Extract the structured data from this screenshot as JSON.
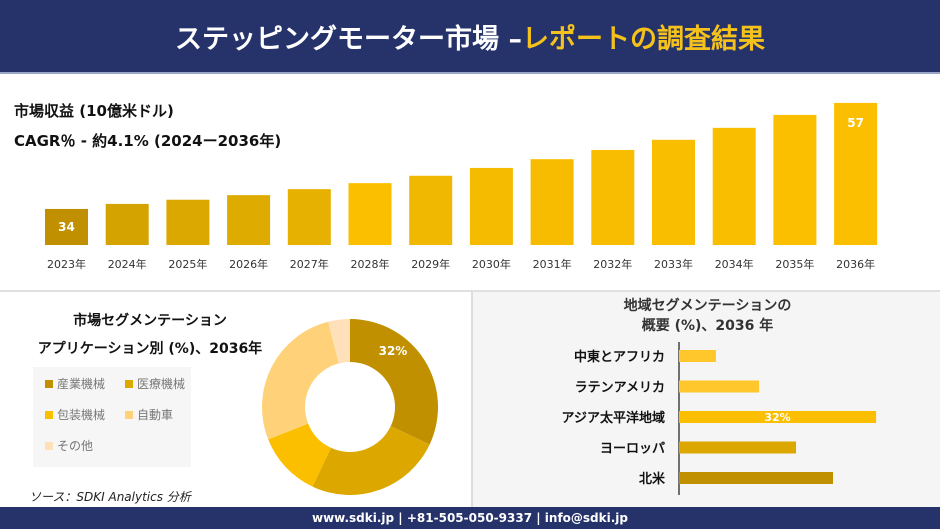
{
  "header": {
    "title_main": "ステッピングモーター市場 –",
    "title_accent": "レポートの調査結果"
  },
  "metrics": {
    "revenue_label": "市場収益 (10億米ドル)",
    "cagr_label": "CAGR％ - 約4.1% (2024ー2036年)"
  },
  "colors": {
    "navy": "#26336b",
    "accent": "#f5c21b",
    "dark_gold": "#c09000",
    "gold": "#dca800",
    "yellow": "#fbbf00",
    "light": "#ffd27a",
    "pale": "#ffe0b8"
  },
  "chart_data": [
    {
      "type": "bar",
      "title": "",
      "categories": [
        "2023年",
        "2024年",
        "2025年",
        "2026年",
        "2027年",
        "2028年",
        "2029年",
        "2030年",
        "2031年",
        "2032年",
        "2033年",
        "2034年",
        "2035年",
        "2036年"
      ],
      "values": [
        34,
        35.1,
        36,
        37,
        38.3,
        39.6,
        41.2,
        42.9,
        44.8,
        46.8,
        49,
        51.6,
        54.4,
        57
      ],
      "data_labels": {
        "0": "34",
        "13": "57"
      },
      "grid": false
    },
    {
      "type": "pie",
      "subtype": "donut",
      "title_line1": "市場セグメンテーション",
      "title_line2": "アプリケーション別 (%)、2036年",
      "slices": [
        {
          "label": "産業機械",
          "value": 32,
          "color": "#c09000"
        },
        {
          "label": "医療機械",
          "value": 25,
          "color": "#dca800"
        },
        {
          "label": "包装機械",
          "value": 12,
          "color": "#fbbf00"
        },
        {
          "label": "自動車",
          "value": 27,
          "color": "#ffd27a"
        },
        {
          "label": "その他",
          "value": 4,
          "color": "#ffe0b8"
        }
      ],
      "data_labels": {
        "0": "32%"
      }
    },
    {
      "type": "bar",
      "orientation": "horizontal",
      "title_line1": "地域セグメンテーションの",
      "title_line2": "概要 (%)、2036 年",
      "categories": [
        "中東とアフリカ",
        "ラテンアメリカ",
        "アジア太平洋地域",
        "ヨーロッパ",
        "北米"
      ],
      "values": [
        6,
        13,
        32,
        19,
        25
      ],
      "colors": [
        "#ffc72c",
        "#ffc72c",
        "#fbbf00",
        "#dca800",
        "#c09000"
      ],
      "data_labels": {
        "2": "32%"
      }
    }
  ],
  "source": "ソース：SDKI Analytics 分析",
  "footer": "www.sdki.jp | +81-505-050-9337 | info@sdki.jp"
}
